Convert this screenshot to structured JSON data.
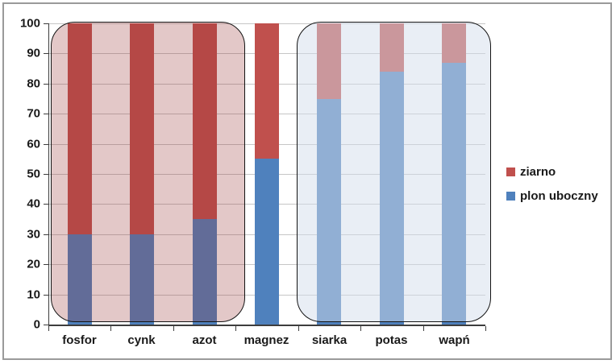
{
  "chart_data": {
    "type": "bar",
    "stacked": true,
    "categories": [
      "fosfor",
      "cynk",
      "azot",
      "magnez",
      "siarka",
      "potas",
      "wapń"
    ],
    "series": [
      {
        "name": "plon uboczny",
        "color": "#4F81BD",
        "values": [
          30,
          30,
          35,
          55,
          75,
          84,
          87
        ]
      },
      {
        "name": "ziarno",
        "color": "#C0504D",
        "values": [
          70,
          70,
          65,
          45,
          25,
          16,
          13
        ]
      }
    ],
    "title": "",
    "xlabel": "",
    "ylabel": "",
    "ylim": [
      0,
      100
    ],
    "y_ticks": [
      0,
      10,
      20,
      30,
      40,
      50,
      60,
      70,
      80,
      90,
      100
    ],
    "grid": true,
    "legend_position": "right",
    "annotations": [
      {
        "type": "rounded-rect-highlight",
        "covers": [
          "fosfor",
          "cynk",
          "azot"
        ],
        "fill": "rgba(150,50,50,0.27)",
        "border": "#141414"
      },
      {
        "type": "rounded-rect-highlight",
        "covers": [
          "siarka",
          "potas",
          "wapń"
        ],
        "fill": "rgba(211,221,235,0.50)",
        "border": "#141414"
      }
    ]
  },
  "legend": {
    "items": [
      {
        "label": "ziarno",
        "color": "#C0504D"
      },
      {
        "label": "plon uboczny",
        "color": "#4F81BD"
      }
    ]
  },
  "colors": {
    "gridline": "#C6C6C6",
    "axis": "#3d3d3d",
    "frame_border": "#9a9a9a",
    "text": "#1a1a1a"
  }
}
